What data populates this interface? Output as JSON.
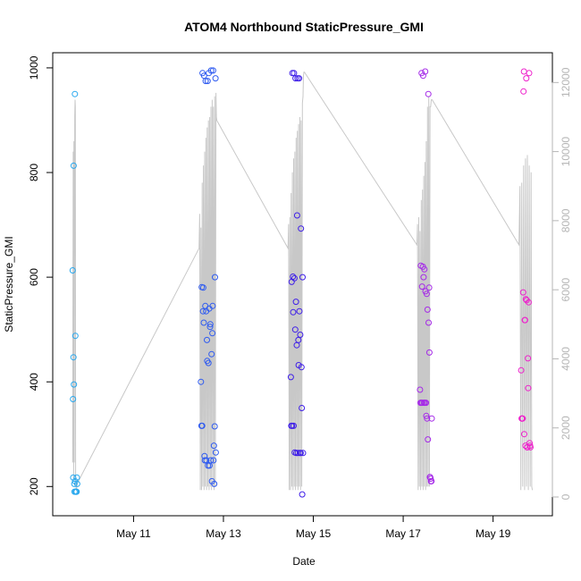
{
  "chart_data": {
    "type": "scatter",
    "title": "ATOM4 Northbound StaticPressure_GMI",
    "xlabel": "Date",
    "ylabel": "StaticPressure_GMI",
    "x_ticks": [
      "May 11",
      "May 13",
      "May 15",
      "May 17",
      "May 19"
    ],
    "y_ticks": [
      200,
      400,
      600,
      800,
      1000
    ],
    "y2_ticks": [
      0,
      2000,
      4000,
      6000,
      8000,
      10000,
      12000
    ],
    "xlim": [
      "2005-05-09T12:00",
      "2005-05-20T01:00"
    ],
    "ylim": [
      180,
      1005
    ],
    "y2lim": [
      0,
      12500
    ],
    "grid": false,
    "colors": {
      "line": "#c8c8c8",
      "axis": "#000000",
      "right_axis": "#b5b5b5",
      "day1": "#29a8ee",
      "day2": "#2f5bf0",
      "day3": "#3f1fe8",
      "day4": "#a52ae8",
      "day5": "#ee22cc"
    },
    "series": [
      {
        "color_key": "day1",
        "x": [
          "2005-05-09T15:30",
          "2005-05-09T15:40",
          "2005-05-09T15:45",
          "2005-05-09T15:55",
          "2005-05-09T16:00",
          "2005-05-09T16:10",
          "2005-05-09T16:20",
          "2005-05-09T16:30",
          "2005-05-09T16:40",
          "2005-05-09T16:45",
          "2005-05-09T16:55",
          "2005-05-09T17:05",
          "2005-05-09T17:15",
          "2005-05-09T17:25",
          "2005-05-09T17:35",
          "2005-05-09T17:45",
          "2005-05-09T17:55"
        ],
        "y": [
          613,
          367,
          217,
          447,
          813,
          395,
          205,
          190,
          950,
          210,
          488,
          190,
          190,
          190,
          190,
          217,
          205
        ]
      },
      {
        "color_key": "day2",
        "x": [
          "2005-05-12T12:00",
          "2005-05-12T12:15",
          "2005-05-12T12:25",
          "2005-05-12T12:40",
          "2005-05-12T12:50",
          "2005-05-12T13:05",
          "2005-05-12T13:15",
          "2005-05-12T13:30",
          "2005-05-12T13:40",
          "2005-05-12T13:55",
          "2005-05-12T14:05",
          "2005-05-12T14:20",
          "2005-05-12T14:30",
          "2005-05-12T14:45",
          "2005-05-12T14:55",
          "2005-05-12T15:10",
          "2005-05-12T15:20",
          "2005-05-12T15:35",
          "2005-05-12T15:45",
          "2005-05-12T16:00",
          "2005-05-12T16:10",
          "2005-05-12T16:25",
          "2005-05-12T16:35",
          "2005-05-12T16:50",
          "2005-05-12T17:00",
          "2005-05-12T17:15",
          "2005-05-12T17:25",
          "2005-05-12T17:40",
          "2005-05-12T17:50",
          "2005-05-12T18:05",
          "2005-05-12T18:15",
          "2005-05-12T18:30",
          "2005-05-12T18:40",
          "2005-05-12T18:55",
          "2005-05-12T19:05",
          "2005-05-12T19:20",
          "2005-05-12T19:30",
          "2005-05-12T19:45",
          "2005-05-12T19:55"
        ],
        "y": [
          400,
          316,
          581,
          316,
          990,
          535,
          580,
          513,
          985,
          258,
          250,
          545,
          975,
          535,
          250,
          480,
          440,
          975,
          240,
          436,
          990,
          540,
          240,
          505,
          510,
          250,
          995,
          453,
          210,
          493,
          545,
          995,
          250,
          278,
          205,
          315,
          600,
          980,
          265
        ]
      },
      {
        "color_key": "day3",
        "x": [
          "2005-05-14T12:00",
          "2005-05-14T12:15",
          "2005-05-14T12:25",
          "2005-05-14T12:40",
          "2005-05-14T12:50",
          "2005-05-14T13:05",
          "2005-05-14T13:15",
          "2005-05-14T13:30",
          "2005-05-14T13:40",
          "2005-05-14T13:55",
          "2005-05-14T14:05",
          "2005-05-14T14:20",
          "2005-05-14T14:30",
          "2005-05-14T14:45",
          "2005-05-14T14:55",
          "2005-05-14T15:10",
          "2005-05-14T15:20",
          "2005-05-14T15:35",
          "2005-05-14T15:45",
          "2005-05-14T16:00",
          "2005-05-14T16:10",
          "2005-05-14T16:25",
          "2005-05-14T16:35",
          "2005-05-14T16:50",
          "2005-05-14T17:00",
          "2005-05-14T17:15",
          "2005-05-14T17:25",
          "2005-05-14T17:40",
          "2005-05-14T17:50",
          "2005-05-14T18:05",
          "2005-05-14T18:15",
          "2005-05-14T18:30"
        ],
        "y": [
          409,
          316,
          591,
          316,
          990,
          601,
          533,
          316,
          990,
          598,
          265,
          500,
          980,
          553,
          264,
          470,
          718,
          980,
          264,
          480,
          432,
          980,
          535,
          264,
          490,
          264,
          693,
          428,
          350,
          185,
          600,
          264
        ]
      },
      {
        "color_key": "day4",
        "x": [
          "2005-05-17T09:00",
          "2005-05-17T09:15",
          "2005-05-17T09:25",
          "2005-05-17T09:40",
          "2005-05-17T09:50",
          "2005-05-17T10:05",
          "2005-05-17T10:15",
          "2005-05-17T10:30",
          "2005-05-17T10:40",
          "2005-05-17T10:55",
          "2005-05-17T11:05",
          "2005-05-17T11:20",
          "2005-05-17T11:30",
          "2005-05-17T11:45",
          "2005-05-17T11:55",
          "2005-05-17T12:10",
          "2005-05-17T12:20",
          "2005-05-17T12:35",
          "2005-05-17T12:45",
          "2005-05-17T13:00",
          "2005-05-17T13:10",
          "2005-05-17T13:25",
          "2005-05-17T13:35",
          "2005-05-17T13:50",
          "2005-05-17T14:00",
          "2005-05-17T14:15",
          "2005-05-17T14:25",
          "2005-05-17T14:40",
          "2005-05-17T14:50",
          "2005-05-17T15:05",
          "2005-05-17T15:15"
        ],
        "y": [
          385,
          360,
          622,
          360,
          990,
          582,
          360,
          620,
          985,
          600,
          360,
          615,
          360,
          993,
          573,
          360,
          335,
          568,
          330,
          538,
          290,
          950,
          513,
          580,
          456,
          218,
          218,
          215,
          210,
          210,
          330
        ]
      },
      {
        "color_key": "day5",
        "x": [
          "2005-05-19T15:00",
          "2005-05-19T15:15",
          "2005-05-19T15:25",
          "2005-05-19T15:40",
          "2005-05-19T15:50",
          "2005-05-19T16:05",
          "2005-05-19T16:15",
          "2005-05-19T16:30",
          "2005-05-19T16:40",
          "2005-05-19T16:55",
          "2005-05-19T17:05",
          "2005-05-19T17:20",
          "2005-05-19T17:30",
          "2005-05-19T17:45",
          "2005-05-19T17:55",
          "2005-05-19T18:10",
          "2005-05-19T18:20",
          "2005-05-19T18:35",
          "2005-05-19T18:45",
          "2005-05-19T19:00",
          "2005-05-19T19:15",
          "2005-05-19T19:30",
          "2005-05-19T19:45",
          "2005-05-19T20:00"
        ],
        "y": [
          422,
          330,
          330,
          330,
          330,
          571,
          955,
          993,
          300,
          518,
          518,
          278,
          558,
          980,
          556,
          275,
          275,
          445,
          388,
          552,
          990,
          283,
          278,
          275
        ]
      }
    ],
    "secondary_series": {
      "name": "",
      "x": [
        "2005-05-09T15:30",
        "2005-05-09T15:45",
        "2005-05-09T16:00",
        "2005-05-09T16:10",
        "2005-05-09T16:20",
        "2005-05-09T16:35",
        "2005-05-09T16:45",
        "2005-05-09T16:55",
        "2005-05-09T17:05",
        "2005-05-09T17:25",
        "2005-05-09T17:45",
        "2005-05-09T18:00",
        "2005-05-12T11:00",
        "2005-05-12T11:20",
        "2005-05-12T11:40",
        "2005-05-12T12:00",
        "2005-05-12T12:20",
        "2005-05-12T12:40",
        "2005-05-12T13:00",
        "2005-05-12T13:20",
        "2005-05-12T13:40",
        "2005-05-12T14:00",
        "2005-05-12T14:20",
        "2005-05-12T14:40",
        "2005-05-12T15:00",
        "2005-05-12T15:20",
        "2005-05-12T15:40",
        "2005-05-12T16:00",
        "2005-05-12T16:20",
        "2005-05-12T16:40",
        "2005-05-12T17:00",
        "2005-05-12T17:20",
        "2005-05-12T17:40",
        "2005-05-12T18:00",
        "2005-05-12T18:20",
        "2005-05-12T18:40",
        "2005-05-12T19:00",
        "2005-05-12T19:20",
        "2005-05-12T19:40",
        "2005-05-12T20:00",
        "2005-05-12T20:15",
        "2005-05-12T20:30",
        "2005-05-14T10:30",
        "2005-05-14T10:50",
        "2005-05-14T11:10",
        "2005-05-14T11:30",
        "2005-05-14T11:50",
        "2005-05-14T12:10",
        "2005-05-14T12:30",
        "2005-05-14T12:50",
        "2005-05-14T13:10",
        "2005-05-14T13:30",
        "2005-05-14T13:50",
        "2005-05-14T14:10",
        "2005-05-14T14:30",
        "2005-05-14T14:50",
        "2005-05-14T15:10",
        "2005-05-14T15:30",
        "2005-05-14T15:50",
        "2005-05-14T16:10",
        "2005-05-14T16:30",
        "2005-05-14T16:50",
        "2005-05-14T17:10",
        "2005-05-14T17:30",
        "2005-05-14T17:50",
        "2005-05-14T18:10",
        "2005-05-14T18:30",
        "2005-05-14T18:45",
        "2005-05-14T19:00",
        "2005-05-14T19:15",
        "2005-05-17T07:20",
        "2005-05-17T07:40",
        "2005-05-17T08:00",
        "2005-05-17T08:20",
        "2005-05-17T08:40",
        "2005-05-17T09:00",
        "2005-05-17T09:20",
        "2005-05-17T09:40",
        "2005-05-17T10:00",
        "2005-05-17T10:20",
        "2005-05-17T10:40",
        "2005-05-17T11:00",
        "2005-05-17T11:20",
        "2005-05-17T11:40",
        "2005-05-17T12:00",
        "2005-05-17T12:20",
        "2005-05-17T12:40",
        "2005-05-17T13:00",
        "2005-05-17T13:20",
        "2005-05-17T13:40",
        "2005-05-17T14:00",
        "2005-05-17T14:20",
        "2005-05-17T14:40",
        "2005-05-17T15:00",
        "2005-05-17T15:30",
        "2005-05-19T13:50",
        "2005-05-19T14:20",
        "2005-05-19T14:50",
        "2005-05-19T15:20",
        "2005-05-19T15:50",
        "2005-05-19T16:20",
        "2005-05-19T16:50",
        "2005-05-19T17:20",
        "2005-05-19T17:50",
        "2005-05-19T18:20",
        "2005-05-19T18:50",
        "2005-05-19T19:20",
        "2005-05-19T19:50",
        "2005-05-19T20:20",
        "2005-05-19T20:40",
        "2005-05-19T21:00"
      ],
      "y": [
        1000,
        10000,
        500,
        10300,
        1000,
        11000,
        11500,
        11300,
        500,
        200,
        300,
        400,
        7200,
        8200,
        200,
        7800,
        200,
        9100,
        300,
        9600,
        200,
        10000,
        300,
        10400,
        200,
        10700,
        300,
        10900,
        200,
        11000,
        300,
        11300,
        200,
        11500,
        300,
        11300,
        200,
        11600,
        300,
        11700,
        11000,
        10900,
        7200,
        7900,
        200,
        8100,
        200,
        8800,
        300,
        9400,
        200,
        9800,
        300,
        10000,
        200,
        10400,
        300,
        10600,
        200,
        10800,
        300,
        11000,
        200,
        10900,
        300,
        11400,
        11600,
        12200,
        12300,
        12300,
        7300,
        7900,
        200,
        8100,
        300,
        7700,
        200,
        8600,
        300,
        8900,
        200,
        9300,
        300,
        9700,
        200,
        10300,
        300,
        11300,
        300,
        11600,
        300,
        11300,
        11300,
        11500,
        11500,
        7300,
        9000,
        200,
        9100,
        300,
        9600,
        200,
        9800,
        300,
        9900,
        200,
        9600,
        300,
        9400,
        300,
        200
      ]
    }
  }
}
